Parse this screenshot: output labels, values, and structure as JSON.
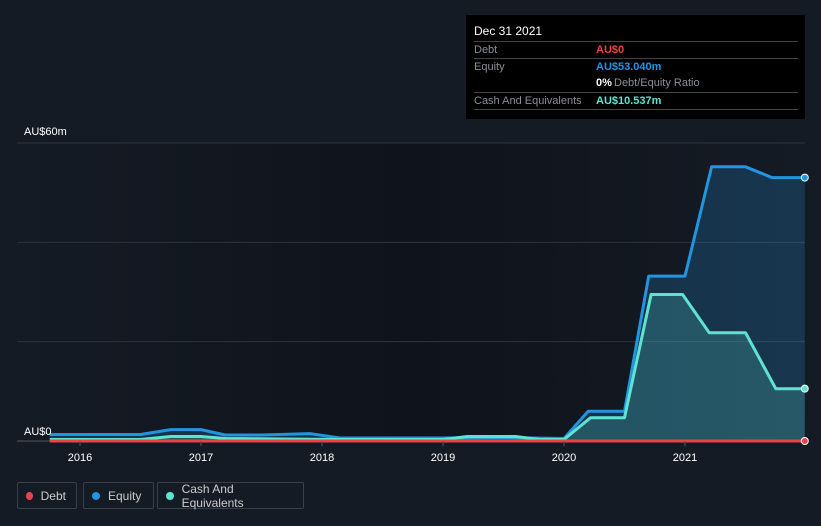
{
  "tooltip": {
    "date": "Dec 31 2021",
    "debt_label": "Debt",
    "debt_value": "AU$0",
    "equity_label": "Equity",
    "equity_value": "AU$53.040m",
    "ratio_value": "0%",
    "ratio_label": "Debt/Equity Ratio",
    "cash_label": "Cash And Equivalents",
    "cash_value": "AU$10.537m"
  },
  "legend": [
    {
      "label": "Debt",
      "color": "#e84549"
    },
    {
      "label": "Equity",
      "color": "#2394df"
    },
    {
      "label": "Cash And Equivalents",
      "color": "#5fe3d1"
    }
  ],
  "chart_data": {
    "type": "area",
    "ylabel_top": "AU$60m",
    "ylabel_bottom": "AU$0",
    "ylim": [
      0,
      60
    ],
    "xlim": [
      2015.75,
      2022.0
    ],
    "xticks": [
      "2016",
      "2017",
      "2018",
      "2019",
      "2020",
      "2021"
    ],
    "series": [
      {
        "name": "Debt",
        "color": "#e84549",
        "x": [
          2015.75,
          2021.99
        ],
        "y": [
          0,
          0
        ]
      },
      {
        "name": "Equity",
        "color": "#2394df",
        "x": [
          2015.75,
          2016.5,
          2016.75,
          2017.0,
          2017.2,
          2017.5,
          2017.9,
          2018.15,
          2019.0,
          2019.5,
          2020.0,
          2020.2,
          2020.5,
          2020.7,
          2021.0,
          2021.22,
          2021.5,
          2021.72,
          2021.99
        ],
        "y": [
          1.3,
          1.3,
          2.3,
          2.3,
          1.2,
          1.2,
          1.5,
          0.6,
          0.6,
          0.7,
          0.5,
          6,
          6,
          33.2,
          33.2,
          55.2,
          55.2,
          53.04,
          53.04
        ]
      },
      {
        "name": "Cash And Equivalents",
        "color": "#5fe3d1",
        "x": [
          2015.75,
          2016.5,
          2016.75,
          2017.0,
          2017.2,
          2018.15,
          2019.0,
          2019.2,
          2019.6,
          2019.8,
          2020.0,
          2020.22,
          2020.5,
          2020.72,
          2020.98,
          2021.2,
          2021.5,
          2021.75,
          2021.99
        ],
        "y": [
          0.3,
          0.3,
          0.9,
          0.9,
          0.5,
          0.3,
          0.3,
          0.9,
          0.9,
          0.3,
          0.3,
          4.7,
          4.7,
          29.5,
          29.5,
          21.8,
          21.8,
          10.537,
          10.537
        ]
      }
    ]
  }
}
